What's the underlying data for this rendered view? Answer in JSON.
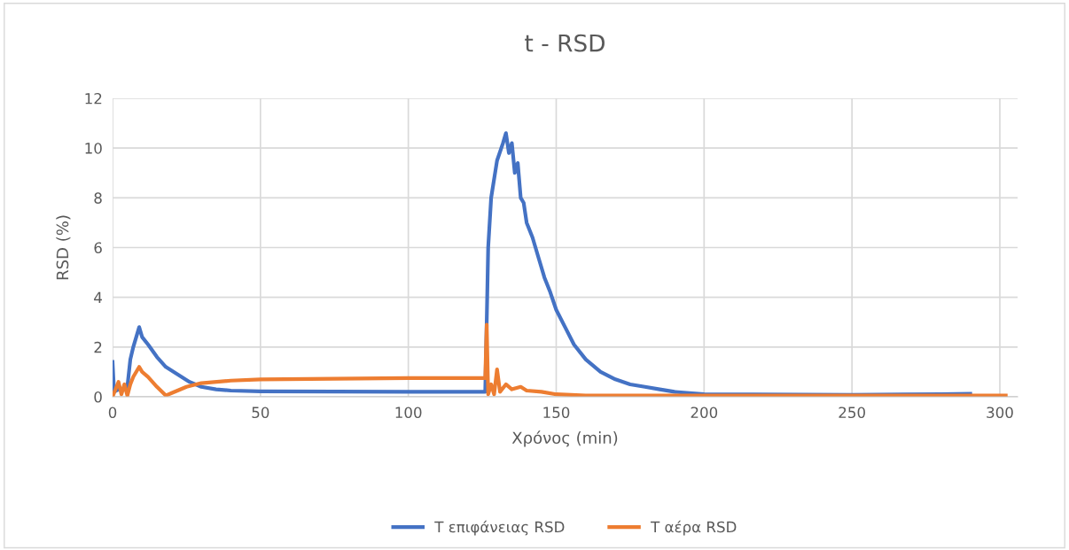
{
  "chart_data": {
    "type": "line",
    "title": "t - RSD",
    "xlabel": "Χρόνος (min)",
    "ylabel": "RSD (%)",
    "xlim": [
      0,
      306
    ],
    "xticks": [
      0,
      50,
      100,
      150,
      200,
      250,
      300
    ],
    "ylim": [
      0,
      12
    ],
    "yticks": [
      0,
      2,
      4,
      6,
      8,
      10,
      12
    ],
    "grid": true,
    "legend": "bottom",
    "marker": "none",
    "line_style": "solid",
    "series": [
      {
        "name": "T επιφάνειας RSD",
        "color": "#4472c4",
        "x": [
          0,
          0.5,
          2,
          4,
          5,
          6,
          7,
          9,
          10,
          12,
          15,
          18,
          22,
          26,
          30,
          35,
          40,
          50,
          100,
          126,
          126.5,
          127,
          128,
          130,
          132,
          133,
          134,
          135,
          136,
          137,
          138,
          139,
          140,
          142,
          144,
          146,
          148,
          150,
          153,
          156,
          160,
          165,
          170,
          175,
          180,
          185,
          190,
          195,
          200,
          250,
          280,
          290
        ],
        "values": [
          1.4,
          0.2,
          0.3,
          0.3,
          0.4,
          1.5,
          2.0,
          2.8,
          2.4,
          2.1,
          1.6,
          1.2,
          0.9,
          0.6,
          0.4,
          0.3,
          0.25,
          0.22,
          0.2,
          0.2,
          3,
          6,
          8,
          9.5,
          10.2,
          10.6,
          9.8,
          10.2,
          9.0,
          9.4,
          8.0,
          7.8,
          7.0,
          6.4,
          5.6,
          4.8,
          4.2,
          3.5,
          2.8,
          2.1,
          1.5,
          1.0,
          0.7,
          0.5,
          0.4,
          0.3,
          0.2,
          0.15,
          0.1,
          0.08,
          0.1,
          0.12
        ]
      },
      {
        "name": "T αέρα RSD",
        "color": "#ed7d31",
        "x": [
          0,
          1,
          2,
          3,
          4,
          5,
          6,
          7,
          9,
          10,
          12,
          15,
          18,
          20,
          25,
          30,
          40,
          50,
          100,
          126,
          126.5,
          127,
          128,
          129,
          130,
          131,
          133,
          135,
          138,
          140,
          145,
          150,
          160,
          200,
          250,
          302
        ],
        "values": [
          0,
          0.3,
          0.6,
          0.1,
          0.5,
          0.05,
          0.5,
          0.8,
          1.2,
          1.0,
          0.8,
          0.4,
          0.05,
          0.15,
          0.4,
          0.55,
          0.65,
          0.7,
          0.75,
          0.75,
          2.9,
          0.1,
          0.5,
          0.1,
          1.1,
          0.2,
          0.5,
          0.3,
          0.4,
          0.25,
          0.2,
          0.1,
          0.05,
          0.05,
          0.05,
          0.05
        ]
      }
    ]
  }
}
